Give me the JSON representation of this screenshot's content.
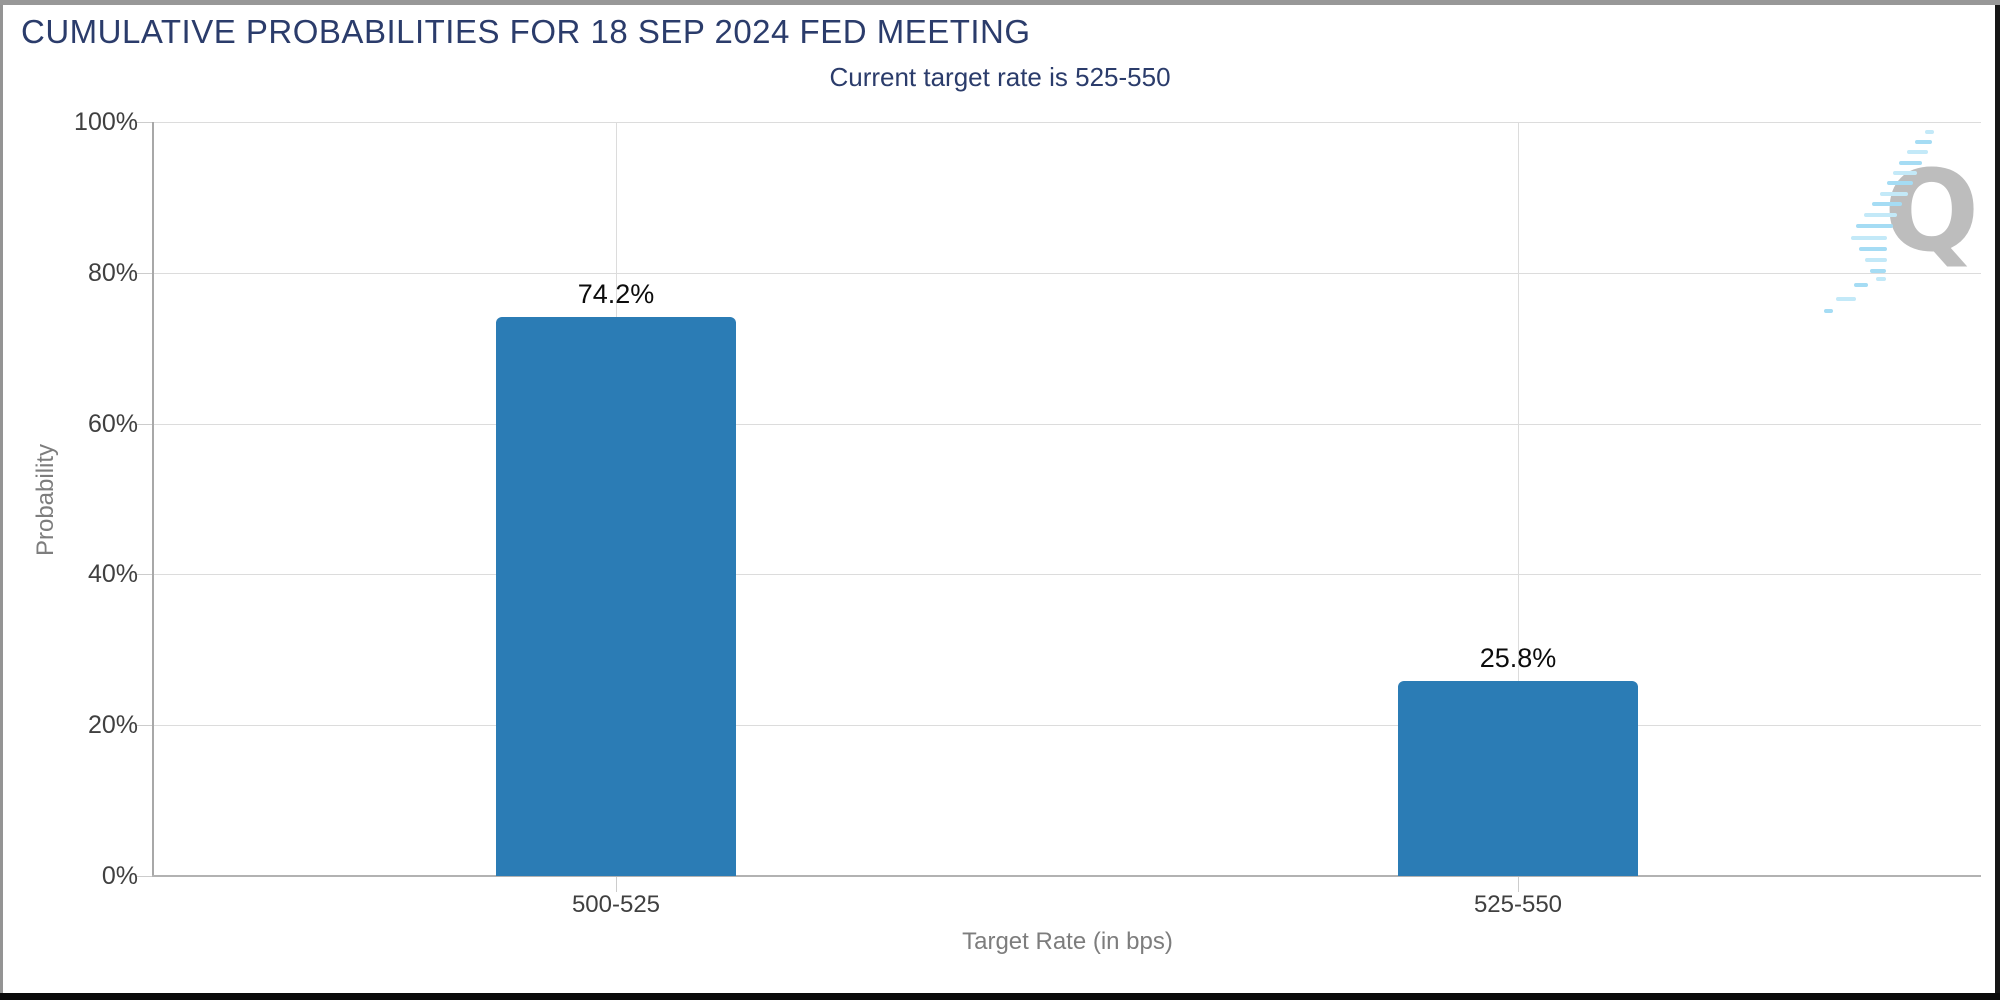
{
  "page": {
    "title": "CUMULATIVE PROBABILITIES FOR 18 SEP 2024 FED MEETING",
    "subtitle": "Current target rate is 525-550"
  },
  "logo": {
    "letter": "Q"
  },
  "colors": {
    "bar": "#2b7cb5",
    "heading_navy": "#2b3c6b",
    "grid": "#dcdcdc",
    "axis_line": "#b2b2b2",
    "tick_text": "#404040",
    "axis_title_text": "#7d7d7d",
    "logo_gray": "#bdbdbd",
    "logo_blue_light": "#c3e9f8",
    "logo_blue": "#a5dcf4"
  },
  "chart_data": {
    "type": "bar",
    "title": "CUMULATIVE PROBABILITIES FOR 18 SEP 2024 FED MEETING",
    "subtitle": "Current target rate is 525-550",
    "categories": [
      "500-525",
      "525-550"
    ],
    "values": [
      74.2,
      25.8
    ],
    "value_labels": [
      "74.2%",
      "25.8%"
    ],
    "xlabel": "Target Rate (in bps)",
    "ylabel": "Probability",
    "ylim": [
      0,
      100
    ],
    "y_ticks": [
      0,
      20,
      40,
      60,
      80,
      100
    ],
    "y_tick_labels": [
      "0%",
      "20%",
      "40%",
      "60%",
      "80%",
      "100%"
    ],
    "grid": true,
    "legend": false,
    "bar_color": "#2b7cb5"
  }
}
